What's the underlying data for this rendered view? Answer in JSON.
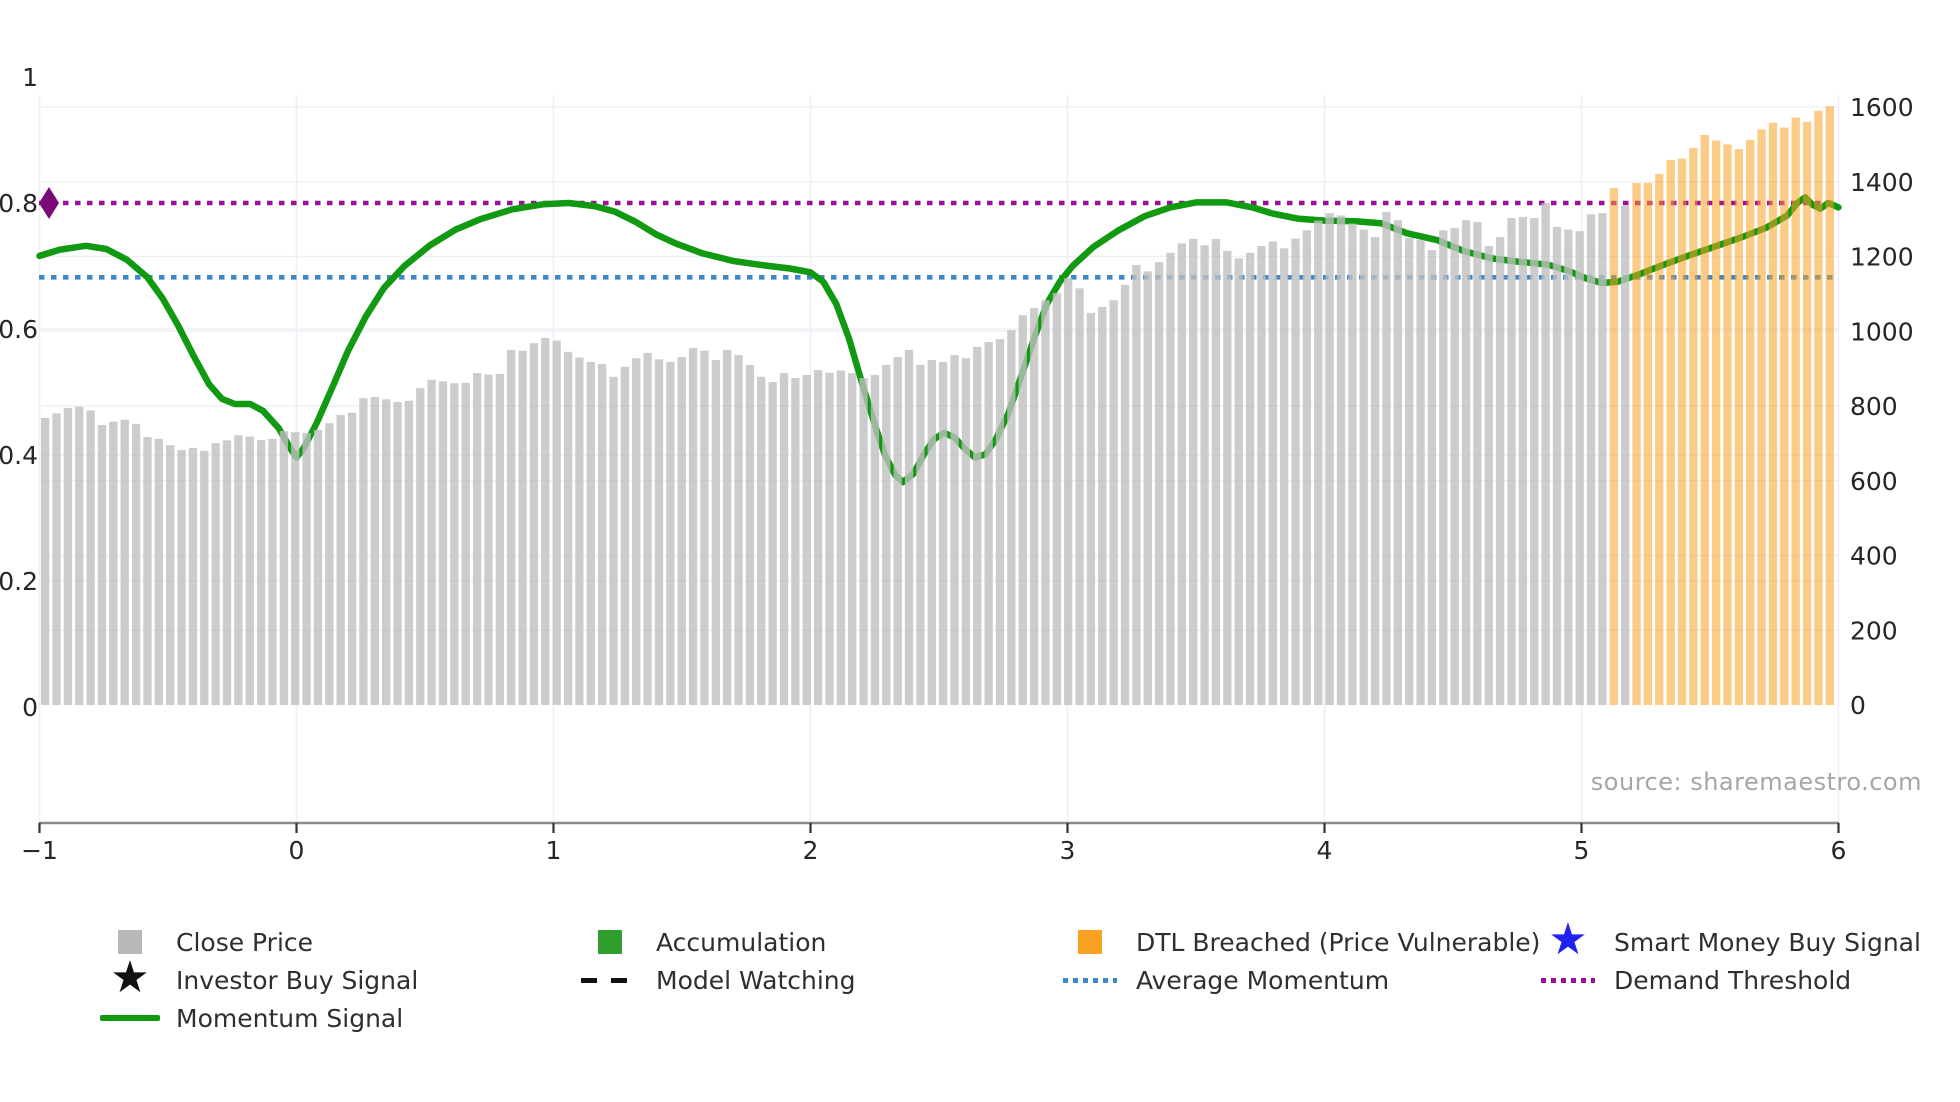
{
  "source_text": "source: sharemaestro.com",
  "colors": {
    "bar_gray": "#bfbfbf",
    "bar_orange": "#f9a123",
    "momentum_green": "#119911",
    "accumulation_green": "#2e9e2e",
    "avg_momentum_blue": "#3d88c9",
    "demand_purple": "#9b0f9b",
    "marker_purple": "#780a78",
    "smart_money_blue": "#2222ee",
    "black": "#111111",
    "legend_gray": "#b9b9b9",
    "gridline": "#eef0f6",
    "axis_line": "#8a8a8a",
    "tick_text": "#262626"
  },
  "chart_data": {
    "type": "bar",
    "title": "",
    "xlabel": "",
    "ylabel_left": "",
    "ylabel_right": "",
    "x_axis": {
      "min": -1,
      "max": 6,
      "ticks": [
        "−1",
        "0",
        "1",
        "2",
        "3",
        "4",
        "5",
        "6"
      ],
      "tick_values": [
        -1,
        0,
        1,
        2,
        3,
        4,
        5,
        6
      ]
    },
    "left_axis": {
      "min": 0,
      "max": 1,
      "ticks": [
        "0",
        "0.2",
        "0.4",
        "0.6",
        "0.8",
        "1"
      ],
      "tick_values": [
        0,
        0.2,
        0.4,
        0.6,
        0.8,
        1
      ]
    },
    "right_axis": {
      "min": 0,
      "max": 1600,
      "ticks": [
        "0",
        "200",
        "400",
        "600",
        "800",
        "1000",
        "1200",
        "1400",
        "1600"
      ],
      "tick_values": [
        0,
        200,
        400,
        600,
        800,
        1000,
        1200,
        1400,
        1600
      ]
    },
    "grid": true,
    "series": [
      {
        "name": "Close Price / DTL Breached bars",
        "axis": "right",
        "values": [
          768,
          780,
          795,
          798,
          788,
          749,
          758,
          763,
          752,
          717,
          712,
          695,
          682,
          688,
          680,
          701,
          708,
          722,
          718,
          709,
          712,
          733,
          730,
          728,
          736,
          754,
          776,
          782,
          821,
          824,
          818,
          811,
          814,
          848,
          870,
          866,
          861,
          862,
          888,
          884,
          886,
          950,
          948,
          968,
          982,
          975,
          945,
          930,
          918,
          912,
          878,
          905,
          928,
          942,
          925,
          918,
          931,
          955,
          948,
          923,
          950,
          936,
          910,
          878,
          864,
          888,
          875,
          883,
          896,
          889,
          895,
          888,
          875,
          883,
          910,
          931,
          950,
          910,
          923,
          918,
          936,
          928,
          958,
          971,
          979,
          1003,
          1043,
          1062,
          1083,
          1102,
          1142,
          1115,
          1049,
          1065,
          1083,
          1124,
          1177,
          1160,
          1185,
          1210,
          1235,
          1247,
          1230,
          1247,
          1215,
          1195,
          1210,
          1228,
          1240,
          1222,
          1248,
          1270,
          1296,
          1316,
          1310,
          1288,
          1272,
          1252,
          1319,
          1297,
          1249,
          1244,
          1217,
          1270,
          1276,
          1297,
          1292,
          1228,
          1252,
          1303,
          1306,
          1303,
          1343,
          1279,
          1272,
          1268,
          1313,
          1316,
          1383,
          1335,
          1397,
          1397,
          1421,
          1458,
          1462,
          1490,
          1525,
          1510,
          1500,
          1487,
          1512,
          1540,
          1558,
          1545,
          1572,
          1560,
          1590,
          1602
        ],
        "dtl_breached_indices": [
          138,
          140,
          141,
          142,
          143,
          144,
          145,
          146,
          147,
          148,
          149,
          150,
          151,
          152,
          153,
          154,
          155,
          156,
          157
        ]
      },
      {
        "name": "Momentum Signal",
        "axis": "left",
        "points": [
          [
            -1.0,
            0.716
          ],
          [
            -0.92,
            0.726
          ],
          [
            -0.82,
            0.732
          ],
          [
            -0.74,
            0.727
          ],
          [
            -0.66,
            0.71
          ],
          [
            -0.58,
            0.682
          ],
          [
            -0.52,
            0.648
          ],
          [
            -0.46,
            0.605
          ],
          [
            -0.4,
            0.557
          ],
          [
            -0.34,
            0.512
          ],
          [
            -0.29,
            0.489
          ],
          [
            -0.24,
            0.481
          ],
          [
            -0.18,
            0.481
          ],
          [
            -0.13,
            0.47
          ],
          [
            -0.07,
            0.443
          ],
          [
            -0.02,
            0.408
          ],
          [
            0.0,
            0.396
          ],
          [
            0.03,
            0.412
          ],
          [
            0.08,
            0.452
          ],
          [
            0.14,
            0.508
          ],
          [
            0.2,
            0.565
          ],
          [
            0.27,
            0.62
          ],
          [
            0.34,
            0.665
          ],
          [
            0.42,
            0.7
          ],
          [
            0.52,
            0.733
          ],
          [
            0.62,
            0.758
          ],
          [
            0.72,
            0.775
          ],
          [
            0.84,
            0.79
          ],
          [
            0.96,
            0.798
          ],
          [
            1.06,
            0.8
          ],
          [
            1.16,
            0.795
          ],
          [
            1.24,
            0.786
          ],
          [
            1.32,
            0.77
          ],
          [
            1.4,
            0.75
          ],
          [
            1.48,
            0.735
          ],
          [
            1.58,
            0.72
          ],
          [
            1.7,
            0.708
          ],
          [
            1.82,
            0.701
          ],
          [
            1.92,
            0.696
          ],
          [
            2.0,
            0.69
          ],
          [
            2.05,
            0.675
          ],
          [
            2.1,
            0.64
          ],
          [
            2.15,
            0.585
          ],
          [
            2.2,
            0.515
          ],
          [
            2.25,
            0.448
          ],
          [
            2.29,
            0.4
          ],
          [
            2.33,
            0.368
          ],
          [
            2.36,
            0.357
          ],
          [
            2.4,
            0.37
          ],
          [
            2.44,
            0.4
          ],
          [
            2.48,
            0.425
          ],
          [
            2.52,
            0.435
          ],
          [
            2.56,
            0.428
          ],
          [
            2.6,
            0.41
          ],
          [
            2.64,
            0.396
          ],
          [
            2.68,
            0.401
          ],
          [
            2.72,
            0.424
          ],
          [
            2.77,
            0.466
          ],
          [
            2.82,
            0.525
          ],
          [
            2.87,
            0.585
          ],
          [
            2.92,
            0.64
          ],
          [
            2.97,
            0.675
          ],
          [
            3.02,
            0.7
          ],
          [
            3.1,
            0.73
          ],
          [
            3.2,
            0.757
          ],
          [
            3.3,
            0.779
          ],
          [
            3.4,
            0.793
          ],
          [
            3.5,
            0.801
          ],
          [
            3.62,
            0.801
          ],
          [
            3.72,
            0.793
          ],
          [
            3.8,
            0.783
          ],
          [
            3.9,
            0.775
          ],
          [
            4.0,
            0.772
          ],
          [
            4.12,
            0.771
          ],
          [
            4.22,
            0.768
          ],
          [
            4.32,
            0.752
          ],
          [
            4.44,
            0.741
          ],
          [
            4.54,
            0.724
          ],
          [
            4.65,
            0.712
          ],
          [
            4.75,
            0.707
          ],
          [
            4.87,
            0.702
          ],
          [
            4.95,
            0.692
          ],
          [
            5.02,
            0.68
          ],
          [
            5.08,
            0.673
          ],
          [
            5.14,
            0.675
          ],
          [
            5.22,
            0.686
          ],
          [
            5.32,
            0.702
          ],
          [
            5.42,
            0.717
          ],
          [
            5.52,
            0.731
          ],
          [
            5.62,
            0.745
          ],
          [
            5.72,
            0.761
          ],
          [
            5.8,
            0.78
          ],
          [
            5.84,
            0.8
          ],
          [
            5.87,
            0.809
          ],
          [
            5.9,
            0.797
          ],
          [
            5.93,
            0.791
          ],
          [
            5.96,
            0.8
          ],
          [
            6.0,
            0.793
          ]
        ]
      }
    ],
    "reference_lines": [
      {
        "name": "Demand Threshold",
        "axis": "left",
        "value": 0.8,
        "style": "dotted",
        "color_key": "demand_purple"
      },
      {
        "name": "Average Momentum",
        "axis": "left",
        "value": 0.682,
        "style": "dotted",
        "color_key": "avg_momentum_blue"
      }
    ],
    "markers": [
      {
        "name": "demand-threshold-diamond",
        "shape": "diamond",
        "x": -0.963,
        "y": 0.8,
        "color_key": "marker_purple"
      }
    ]
  },
  "legend": {
    "columns": [
      {
        "items": [
          {
            "swatch": "square",
            "color_key": "legend_gray",
            "label": "Close Price",
            "name": "close-price"
          },
          {
            "swatch": "star",
            "color_key": "black",
            "label": "Investor Buy Signal",
            "name": "investor-buy-signal"
          },
          {
            "swatch": "line",
            "color_key": "momentum_green",
            "label": "Momentum Signal",
            "name": "momentum-signal"
          }
        ]
      },
      {
        "items": [
          {
            "swatch": "square",
            "color_key": "accumulation_green",
            "label": "Accumulation",
            "name": "accumulation"
          },
          {
            "swatch": "dashed",
            "color_key": "black",
            "label": "Model Watching",
            "name": "model-watching"
          }
        ]
      },
      {
        "items": [
          {
            "swatch": "square",
            "color_key": "bar_orange",
            "label": "DTL Breached (Price Vulnerable)",
            "name": "dtl-breached"
          },
          {
            "swatch": "dotted",
            "color_key": "avg_momentum_blue",
            "label": "Average Momentum",
            "name": "average-momentum"
          }
        ]
      },
      {
        "items": [
          {
            "swatch": "star",
            "color_key": "smart_money_blue",
            "label": "Smart Money Buy Signal",
            "name": "smart-money-buy-signal"
          },
          {
            "swatch": "dotted",
            "color_key": "demand_purple",
            "label": "Demand Threshold",
            "name": "demand-threshold"
          }
        ]
      }
    ]
  }
}
